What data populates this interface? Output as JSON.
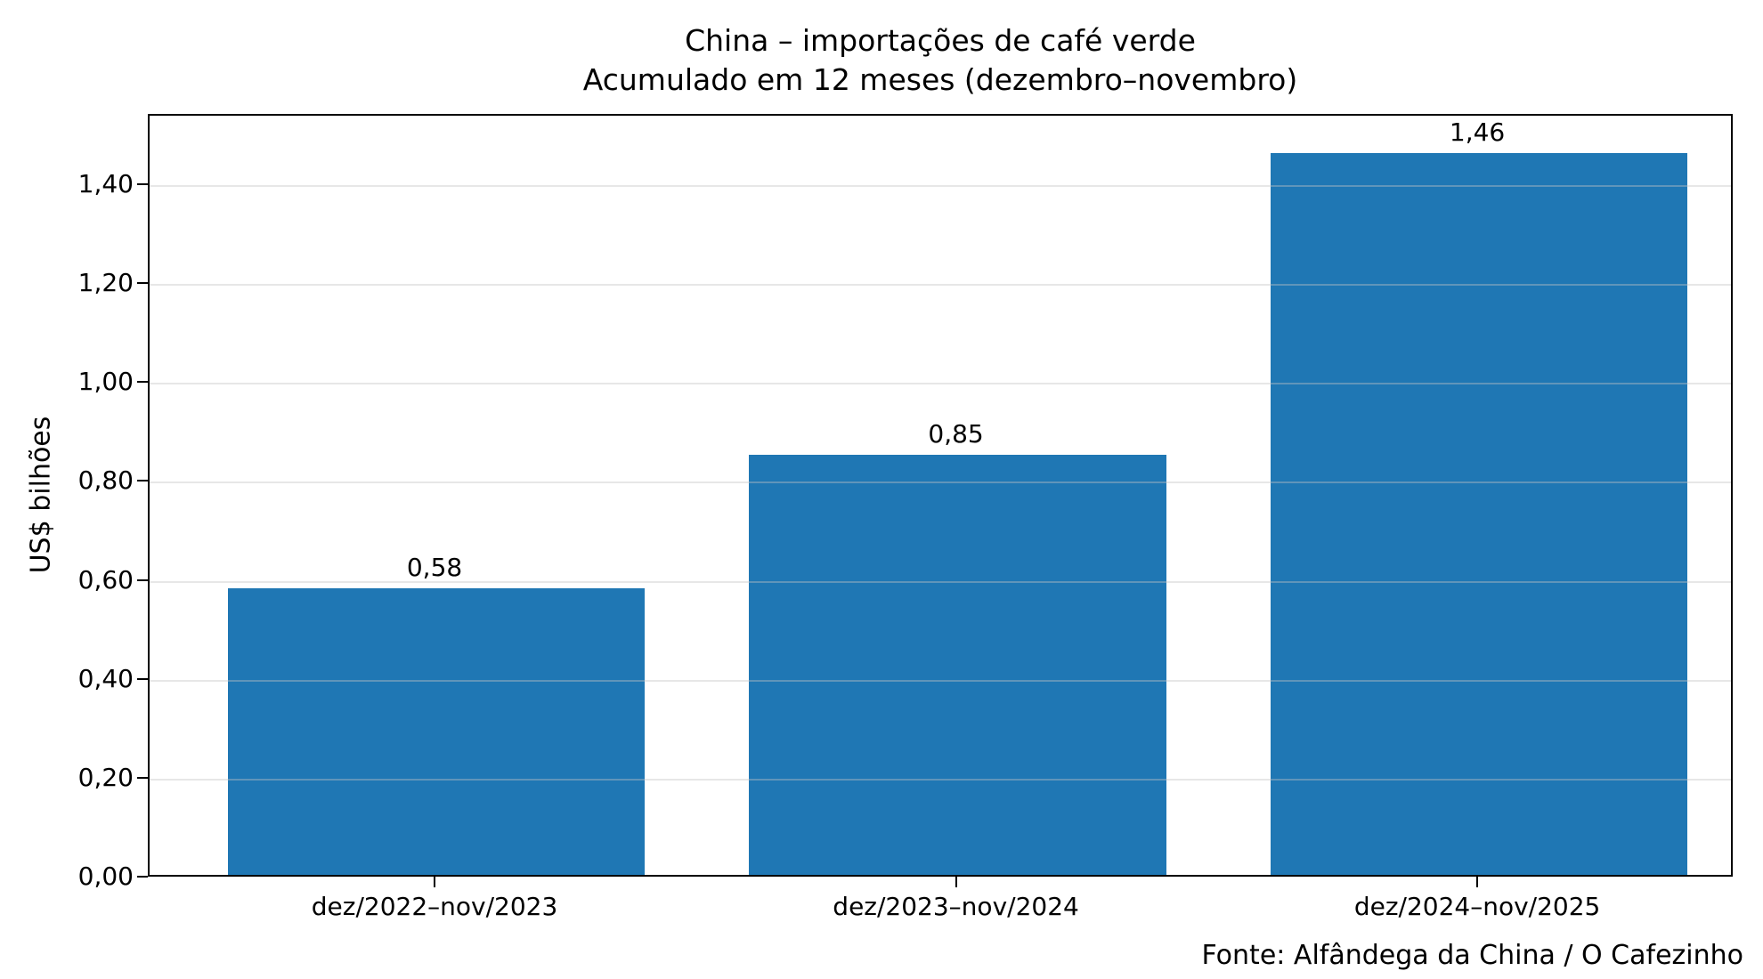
{
  "chart": {
    "title_line1": "China – importações de café verde",
    "title_line2": "Acumulado em 12 meses (dezembro–novembro)",
    "ylabel": "US$ bilhões",
    "source": "Fonte: Alfândega da China / O Cafezinho"
  },
  "chart_data": {
    "type": "bar",
    "title": "China – importações de café verde\nAcumulado em 12 meses (dezembro–novembro)",
    "categories": [
      "dez/2022–nov/2023",
      "dez/2023–nov/2024",
      "dez/2024–nov/2025"
    ],
    "values": [
      0.58,
      0.85,
      1.46
    ],
    "value_labels": [
      "0,58",
      "0,85",
      "1,46"
    ],
    "xlabel": "",
    "ylabel": "US$ bilhões",
    "ylim": [
      0,
      1.542
    ],
    "yticks": [
      0.0,
      0.2,
      0.4,
      0.6,
      0.8,
      1.0,
      1.2,
      1.4
    ],
    "ytick_labels": [
      "0,00",
      "0,20",
      "0,40",
      "0,60",
      "0,80",
      "1,00",
      "1,20",
      "1,40"
    ],
    "bar_color": "#1f77b4",
    "grid": true,
    "legend_position": "none",
    "source": "Fonte: Alfândega da China / O Cafezinho"
  }
}
